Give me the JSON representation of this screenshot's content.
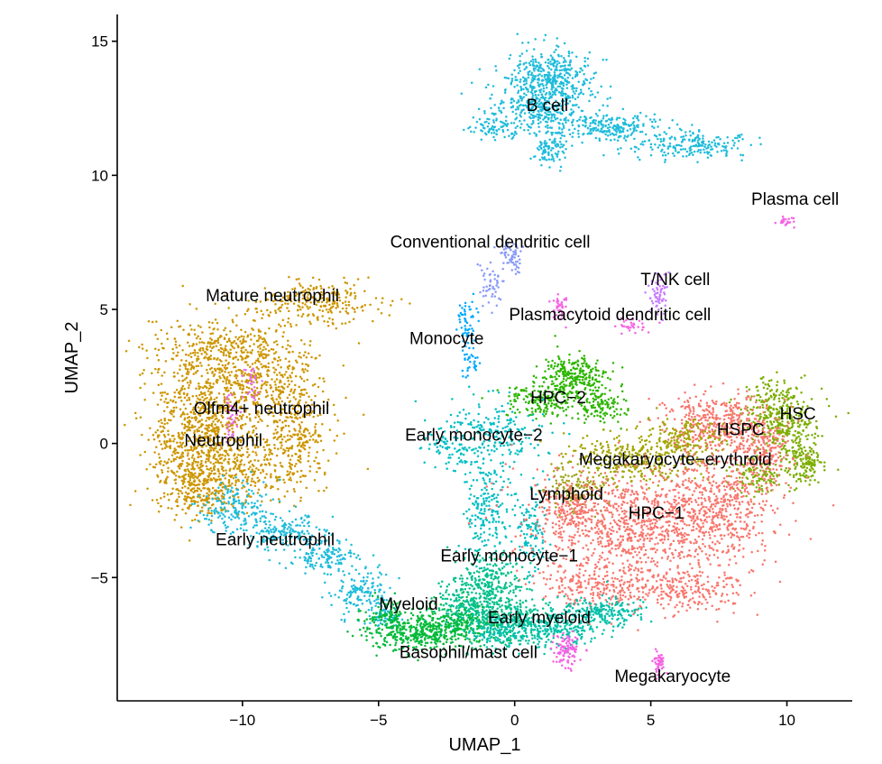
{
  "chart_data": {
    "type": "scatter",
    "title": "",
    "xlabel": "UMAP_1",
    "ylabel": "UMAP_2",
    "xlim": [
      -14.6,
      12.4
    ],
    "ylim": [
      -9.6,
      16.0
    ],
    "xticks": [
      -10,
      -5,
      0,
      5,
      10
    ],
    "yticks": [
      -5,
      0,
      5,
      10,
      15
    ],
    "xtick_labels": [
      "−10",
      "−5",
      "0",
      "5",
      "10"
    ],
    "ytick_labels": [
      "−5",
      "0",
      "5",
      "10",
      "15"
    ],
    "grid": false,
    "legend": "none",
    "clusters": [
      {
        "label": "B cell",
        "color": "#1FBCDB",
        "label_x": 1.2,
        "label_y": 12.4,
        "blobs": [
          [
            1.3,
            13.6,
            1.0,
            0.7,
            420
          ],
          [
            1.0,
            12.5,
            1.3,
            0.6,
            300
          ],
          [
            3.6,
            11.8,
            1.3,
            0.35,
            220
          ],
          [
            6.5,
            11.1,
            1.3,
            0.3,
            200
          ],
          [
            1.3,
            11.0,
            0.4,
            0.45,
            90
          ],
          [
            -0.7,
            11.8,
            0.7,
            0.3,
            80
          ]
        ]
      },
      {
        "label": "Plasma cell",
        "color": "#F564E3",
        "label_x": 10.3,
        "label_y": 8.9,
        "blobs": [
          [
            9.9,
            8.3,
            0.25,
            0.1,
            22
          ]
        ]
      },
      {
        "label": "Conventional dendritic cell",
        "color": "#8A9BF7",
        "label_x": -0.9,
        "label_y": 7.3,
        "blobs": [
          [
            -0.1,
            7.0,
            0.25,
            0.55,
            60
          ],
          [
            -0.9,
            5.9,
            0.3,
            0.55,
            50
          ]
        ]
      },
      {
        "label": "T/NK cell",
        "color": "#C77CFF",
        "label_x": 5.9,
        "label_y": 5.9,
        "blobs": [
          [
            5.3,
            5.6,
            0.25,
            0.55,
            60
          ]
        ]
      },
      {
        "label": "Plasmacytoid dendritic cell",
        "color": "#F564E3",
        "label_x": 3.5,
        "label_y": 4.6,
        "blobs": [
          [
            1.7,
            5.1,
            0.25,
            0.3,
            40
          ],
          [
            4.3,
            4.4,
            0.4,
            0.2,
            30
          ]
        ]
      },
      {
        "label": "Monocyte",
        "color": "#00A9FF",
        "label_x": -2.5,
        "label_y": 3.7,
        "blobs": [
          [
            -1.8,
            4.5,
            0.25,
            0.7,
            60
          ],
          [
            -1.6,
            3.1,
            0.2,
            0.5,
            30
          ]
        ]
      },
      {
        "label": "Mature neutrophil",
        "color": "#CD9600",
        "label_x": -8.9,
        "label_y": 5.3,
        "blobs": [
          [
            -7.3,
            5.3,
            1.6,
            0.55,
            250
          ],
          [
            -10.7,
            3.4,
            1.9,
            1.0,
            420
          ],
          [
            -11.6,
            1.2,
            1.2,
            1.2,
            300
          ],
          [
            -9.3,
            2.0,
            1.6,
            1.2,
            380
          ],
          [
            -12.0,
            -0.7,
            1.0,
            1.2,
            300
          ],
          [
            -9.8,
            -1.0,
            1.6,
            0.9,
            320
          ],
          [
            -8.0,
            0.4,
            0.7,
            1.0,
            200
          ],
          [
            -11.4,
            -1.9,
            0.8,
            0.5,
            150
          ]
        ]
      },
      {
        "label": "Olfm4+ neutrophil",
        "color": "#E76BF3",
        "label_x": -9.3,
        "label_y": 1.1,
        "blobs": [
          [
            -10.4,
            1.0,
            0.2,
            0.6,
            40
          ],
          [
            -9.6,
            2.3,
            0.2,
            0.5,
            25
          ]
        ]
      },
      {
        "label": "Neutrophil",
        "color": "#CD9600",
        "label_x": -10.7,
        "label_y": -0.1,
        "blobs": [
          [
            -11.3,
            0.5,
            1.0,
            1.0,
            160
          ]
        ]
      },
      {
        "label": "HPC−2",
        "color": "#2DB600",
        "label_x": 1.6,
        "label_y": 1.5,
        "blobs": [
          [
            2.2,
            2.5,
            0.8,
            0.5,
            260
          ],
          [
            1.0,
            1.6,
            1.0,
            0.5,
            180
          ],
          [
            3.2,
            1.4,
            0.6,
            0.45,
            120
          ]
        ]
      },
      {
        "label": "Early monocyte−2",
        "color": "#00BFC4",
        "label_x": -1.5,
        "label_y": 0.1,
        "blobs": [
          [
            -0.8,
            0.3,
            1.3,
            0.9,
            220
          ],
          [
            -1.0,
            -2.5,
            0.6,
            1.3,
            200
          ],
          [
            0.6,
            -3.0,
            0.4,
            1.2,
            120
          ],
          [
            -2.4,
            -0.2,
            0.6,
            0.5,
            60
          ]
        ]
      },
      {
        "label": "HSC",
        "color": "#7CAE00",
        "label_x": 10.4,
        "label_y": 0.9,
        "blobs": [
          [
            9.7,
            1.0,
            0.9,
            0.9,
            380
          ],
          [
            10.6,
            -0.7,
            0.5,
            0.6,
            160
          ],
          [
            8.9,
            -1.2,
            0.6,
            0.5,
            120
          ]
        ]
      },
      {
        "label": "HSPC",
        "color": "#F8766D",
        "label_x": 8.3,
        "label_y": 0.3,
        "blobs": [
          [
            7.5,
            0.8,
            1.3,
            0.7,
            360
          ],
          [
            9.0,
            -0.2,
            0.8,
            0.8,
            220
          ]
        ]
      },
      {
        "label": "Megakaryocyte−erythroid",
        "color": "#A3A500",
        "label_x": 5.9,
        "label_y": -0.8,
        "blobs": [
          [
            4.3,
            -0.6,
            1.7,
            0.6,
            320
          ],
          [
            6.2,
            0.2,
            1.0,
            0.5,
            160
          ]
        ]
      },
      {
        "label": "Lymphoid",
        "color": "#9EA41A",
        "label_x": 1.9,
        "label_y": -2.1,
        "blobs": [
          [
            2.3,
            -1.7,
            0.8,
            0.5,
            140
          ]
        ]
      },
      {
        "label": "HPC−1",
        "color": "#F8766D",
        "label_x": 5.2,
        "label_y": -2.8,
        "blobs": [
          [
            4.6,
            -3.0,
            2.6,
            1.3,
            950
          ],
          [
            7.5,
            -2.3,
            1.4,
            1.3,
            420
          ],
          [
            3.3,
            -5.3,
            1.5,
            0.7,
            260
          ],
          [
            6.2,
            -5.5,
            1.5,
            0.6,
            220
          ],
          [
            2.0,
            -2.4,
            0.8,
            0.6,
            140
          ]
        ]
      },
      {
        "label": "Early neutrophil",
        "color": "#1FBCDB",
        "label_x": -8.8,
        "label_y": -3.8,
        "blobs": [
          [
            -10.3,
            -2.4,
            0.9,
            0.6,
            180
          ],
          [
            -8.3,
            -3.3,
            0.9,
            0.4,
            160
          ],
          [
            -6.8,
            -4.2,
            0.8,
            0.4,
            140
          ],
          [
            -5.6,
            -5.6,
            0.7,
            0.5,
            140
          ],
          [
            -4.8,
            -6.5,
            0.4,
            0.3,
            60
          ]
        ]
      },
      {
        "label": "Early monocyte−1",
        "color": "#00C08B",
        "label_x": -0.2,
        "label_y": -4.4,
        "blobs": [
          [
            -1.0,
            -5.2,
            0.9,
            0.7,
            260
          ],
          [
            -0.3,
            -6.5,
            1.1,
            0.6,
            260
          ],
          [
            -1.8,
            -6.2,
            0.8,
            0.6,
            200
          ]
        ]
      },
      {
        "label": "Myeloid",
        "color": "#00BA38",
        "label_x": -3.9,
        "label_y": -6.2,
        "blobs": [
          [
            -3.9,
            -7.1,
            1.1,
            0.4,
            260
          ],
          [
            -2.4,
            -6.9,
            1.1,
            0.55,
            260
          ],
          [
            -4.7,
            -6.4,
            0.5,
            0.4,
            100
          ]
        ]
      },
      {
        "label": "Early myeloid",
        "color": "#00C1A9",
        "label_x": 0.9,
        "label_y": -6.7,
        "blobs": [
          [
            1.3,
            -6.9,
            1.1,
            0.45,
            240
          ],
          [
            3.2,
            -6.3,
            1.1,
            0.35,
            200
          ],
          [
            -0.6,
            -7.0,
            0.8,
            0.4,
            140
          ]
        ]
      },
      {
        "label": "Basophil/mast cell",
        "color": "#F564E3",
        "label_x": -1.7,
        "label_y": -8.0,
        "blobs": [
          [
            1.9,
            -7.7,
            0.35,
            0.4,
            100
          ]
        ]
      },
      {
        "label": "Megakaryocyte",
        "color": "#F564E3",
        "label_x": 5.8,
        "label_y": -8.9,
        "blobs": [
          [
            5.3,
            -8.2,
            0.15,
            0.3,
            50
          ]
        ]
      }
    ]
  }
}
